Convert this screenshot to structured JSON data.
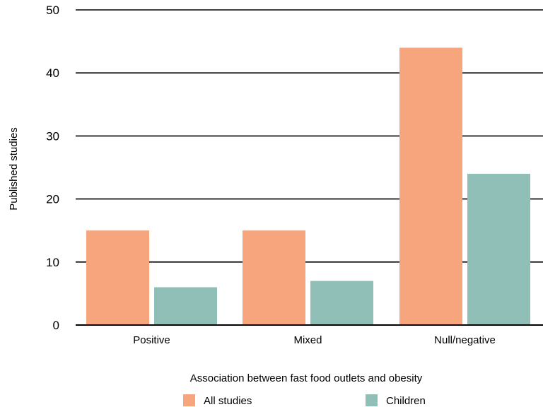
{
  "chart_data": {
    "type": "bar",
    "categories": [
      "Positive",
      "Mixed",
      "Null/negative"
    ],
    "series": [
      {
        "name": "All studies",
        "values": [
          15,
          15,
          44
        ],
        "color": "#F6A57C"
      },
      {
        "name": "Children",
        "values": [
          6,
          7,
          24
        ],
        "color": "#90BFB8"
      }
    ],
    "xlabel": "Association between fast food outlets and obesity",
    "ylabel": "Published studies",
    "ylim": [
      0,
      50
    ],
    "yticks": [
      0,
      10,
      20,
      30,
      40,
      50
    ],
    "grid": true,
    "legend_position": "bottom"
  }
}
